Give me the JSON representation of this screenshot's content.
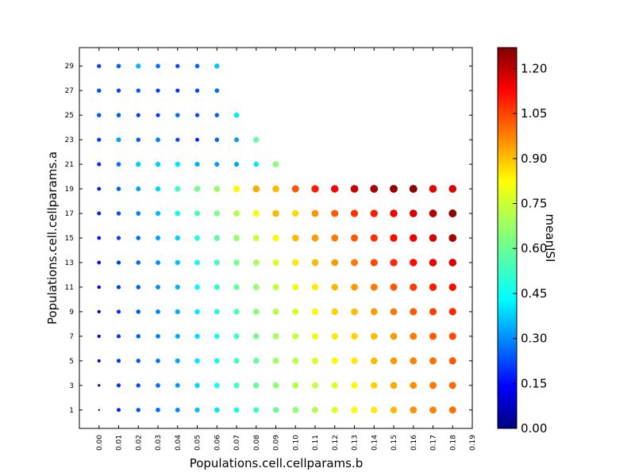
{
  "chart_data": {
    "type": "scatter",
    "title": "",
    "xlabel": "Populations.cell.cellparams.b",
    "ylabel": "Populations.cell.cellparams.a",
    "colorbar_label": "meanISI",
    "x_ticks": [
      "0.00",
      "0.01",
      "0.02",
      "0.03",
      "0.04",
      "0.05",
      "0.06",
      "0.07",
      "0.08",
      "0.09",
      "0.10",
      "0.11",
      "0.12",
      "0.13",
      "0.14",
      "0.15",
      "0.16",
      "0.17",
      "0.18",
      "0.19"
    ],
    "y_ticks": [
      "1",
      "3",
      "5",
      "7",
      "9",
      "11",
      "13",
      "15",
      "17",
      "19",
      "21",
      "23",
      "25",
      "27",
      "29"
    ],
    "colorbar_ticks": [
      "0.00",
      "0.15",
      "0.30",
      "0.45",
      "0.60",
      "0.75",
      "0.90",
      "1.05",
      "1.20"
    ],
    "xlim": [
      -0.01,
      0.19
    ],
    "ylim": [
      -0.5,
      30.5
    ],
    "clim": [
      0.0,
      1.27
    ],
    "colormap": "jet",
    "grid": false,
    "rows": [
      {
        "a": 1,
        "values": [
          0.01,
          0.2,
          0.26,
          0.3,
          0.33,
          0.4,
          0.45,
          0.5,
          0.55,
          0.6,
          0.65,
          0.7,
          0.75,
          0.8,
          0.82,
          0.88,
          0.93,
          0.95,
          0.97
        ]
      },
      {
        "a": 3,
        "values": [
          0.05,
          0.22,
          0.26,
          0.3,
          0.35,
          0.43,
          0.5,
          0.55,
          0.6,
          0.65,
          0.7,
          0.72,
          0.75,
          0.8,
          0.85,
          0.9,
          0.93,
          0.96,
          0.98
        ]
      },
      {
        "a": 5,
        "values": [
          0.1,
          0.22,
          0.27,
          0.3,
          0.36,
          0.44,
          0.5,
          0.55,
          0.6,
          0.67,
          0.7,
          0.75,
          0.8,
          0.82,
          0.88,
          0.92,
          0.95,
          0.97,
          1.0
        ]
      },
      {
        "a": 7,
        "values": [
          0.12,
          0.22,
          0.27,
          0.32,
          0.37,
          0.44,
          0.5,
          0.55,
          0.62,
          0.68,
          0.72,
          0.77,
          0.82,
          0.85,
          0.88,
          0.92,
          0.96,
          1.0,
          1.02
        ]
      },
      {
        "a": 9,
        "values": [
          0.12,
          0.22,
          0.27,
          0.32,
          0.37,
          0.45,
          0.52,
          0.57,
          0.64,
          0.7,
          0.75,
          0.8,
          0.85,
          0.88,
          0.92,
          0.96,
          1.0,
          1.03,
          1.06
        ]
      },
      {
        "a": 11,
        "values": [
          0.15,
          0.23,
          0.28,
          0.33,
          0.38,
          0.47,
          0.54,
          0.6,
          0.66,
          0.72,
          0.77,
          0.82,
          0.88,
          0.92,
          0.96,
          1.0,
          1.04,
          1.08,
          1.1
        ]
      },
      {
        "a": 13,
        "values": [
          0.18,
          0.23,
          0.29,
          0.34,
          0.4,
          0.49,
          0.56,
          0.62,
          0.68,
          0.75,
          0.82,
          0.88,
          0.92,
          0.96,
          1.02,
          1.06,
          1.1,
          1.13,
          1.16
        ]
      },
      {
        "a": 15,
        "values": [
          0.18,
          0.24,
          0.3,
          0.36,
          0.42,
          0.52,
          0.58,
          0.66,
          0.72,
          0.8,
          0.88,
          0.92,
          0.96,
          1.0,
          1.05,
          1.1,
          1.13,
          1.16,
          1.22
        ]
      },
      {
        "a": 17,
        "values": [
          0.2,
          0.26,
          0.32,
          0.39,
          0.5,
          0.57,
          0.63,
          0.7,
          0.8,
          0.88,
          0.84,
          0.93,
          1.0,
          1.05,
          1.08,
          1.12,
          1.16,
          1.2,
          1.25
        ]
      },
      {
        "a": 19,
        "values": [
          0.2,
          0.28,
          0.36,
          0.42,
          0.55,
          0.62,
          0.66,
          0.8,
          0.9,
          0.88,
          1.0,
          1.08,
          1.12,
          1.18,
          1.22,
          1.24,
          1.26,
          1.14,
          1.16
        ]
      },
      {
        "a": 21,
        "values": [
          0.22,
          0.3,
          0.42,
          0.42,
          0.45,
          0.38,
          0.35,
          0.36,
          0.45,
          0.65
        ]
      },
      {
        "a": 23,
        "values": [
          0.24,
          0.36,
          0.27,
          0.32,
          0.25,
          0.2,
          0.28,
          0.35,
          0.6
        ]
      },
      {
        "a": 25,
        "values": [
          0.28,
          0.27,
          0.24,
          0.23,
          0.3,
          0.25,
          0.28,
          0.45
        ]
      },
      {
        "a": 27,
        "values": [
          0.26,
          0.24,
          0.27,
          0.24,
          0.22,
          0.25,
          0.3
        ]
      },
      {
        "a": 29,
        "values": [
          0.25,
          0.28,
          0.38,
          0.3,
          0.25,
          0.28,
          0.4
        ]
      }
    ]
  }
}
